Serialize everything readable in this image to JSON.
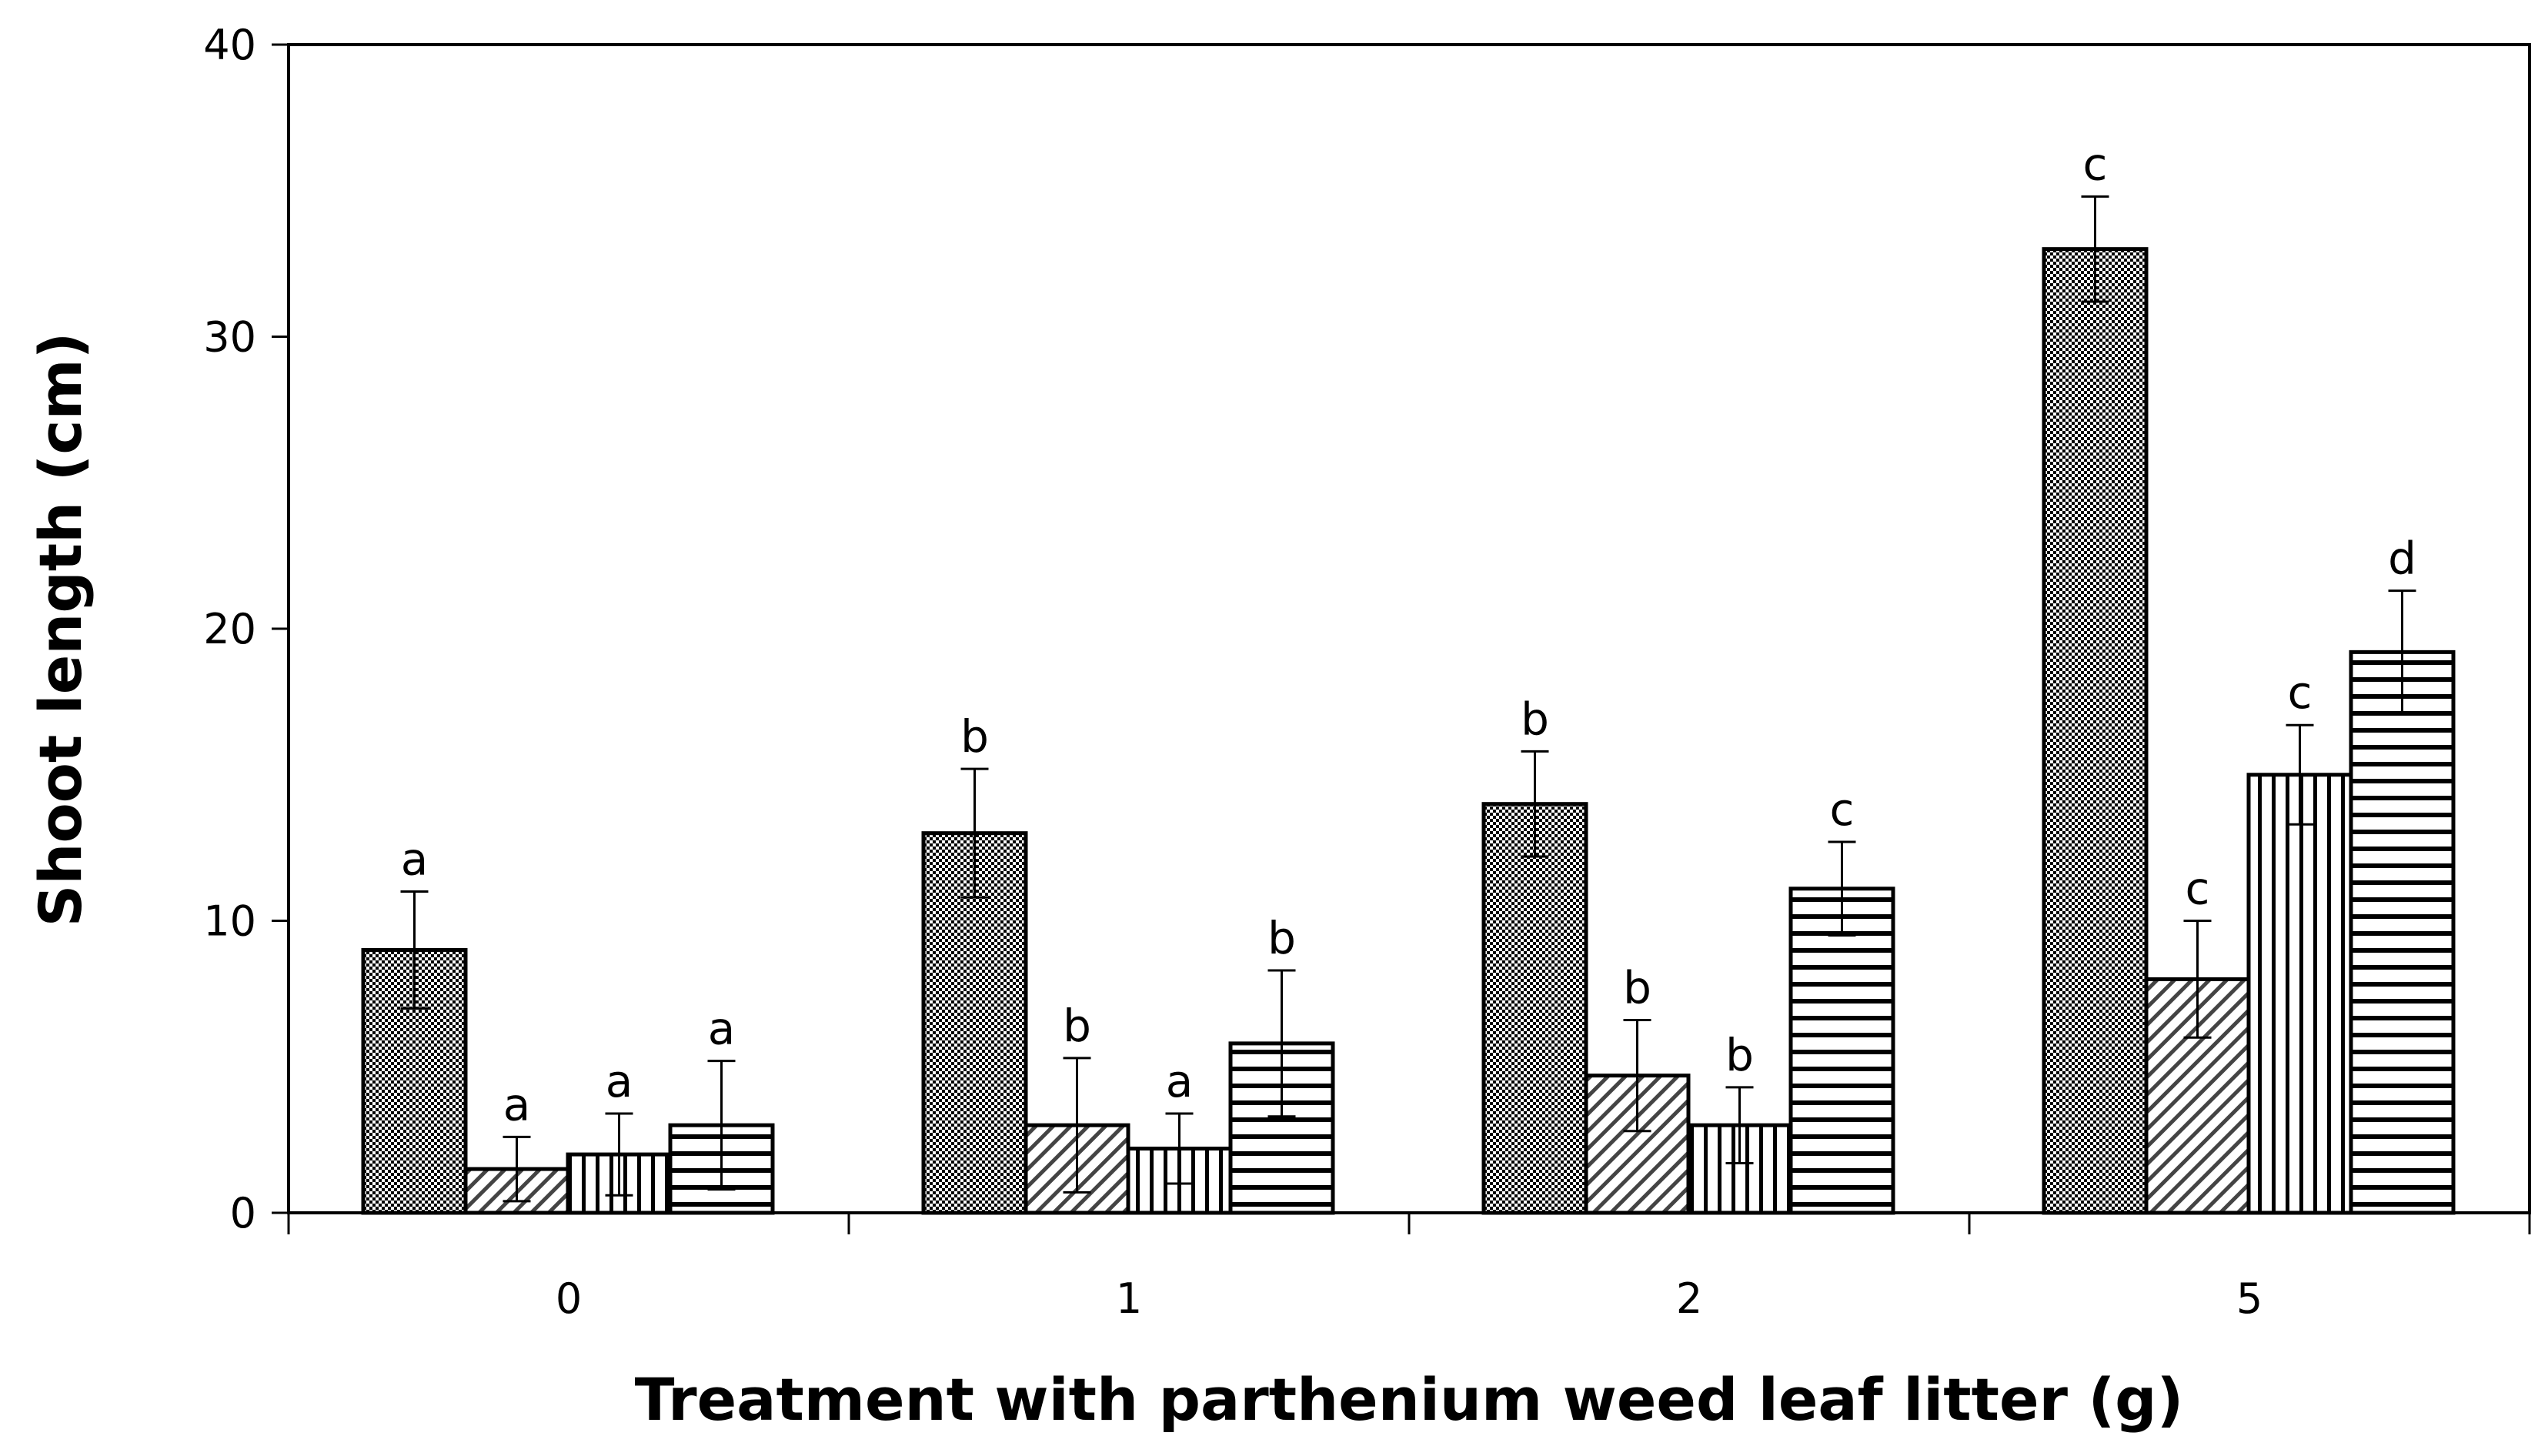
{
  "chart_data": {
    "type": "bar",
    "title": "",
    "xlabel": "Treatment with parthenium weed leaf litter (g)",
    "ylabel": "Shoot length (cm)",
    "ylim": [
      0,
      40
    ],
    "yticks": [
      "0",
      "10",
      "20",
      "30",
      "40"
    ],
    "categories": [
      "0",
      "1",
      "2",
      "5"
    ],
    "grid": false,
    "legend": "none",
    "series": [
      {
        "pattern": "checker",
        "values": [
          9,
          13,
          14,
          33
        ],
        "errors": [
          2,
          2.2,
          1.8,
          1.8
        ],
        "labels": [
          "a",
          "b",
          "b",
          "c"
        ]
      },
      {
        "pattern": "diagonal",
        "values": [
          1.5,
          3,
          4.7,
          8
        ],
        "errors": [
          1.1,
          2.3,
          1.9,
          2
        ],
        "labels": [
          "a",
          "b",
          "b",
          "c"
        ]
      },
      {
        "pattern": "vertical",
        "values": [
          2,
          2.2,
          3,
          15
        ],
        "errors": [
          1.4,
          1.2,
          1.3,
          1.7
        ],
        "labels": [
          "a",
          "a",
          "b",
          "c"
        ]
      },
      {
        "pattern": "horizontal",
        "values": [
          3,
          5.8,
          11.1,
          19.2
        ],
        "errors": [
          2.2,
          2.5,
          1.6,
          2.1
        ],
        "labels": [
          "a",
          "b",
          "c",
          "d"
        ]
      }
    ]
  }
}
